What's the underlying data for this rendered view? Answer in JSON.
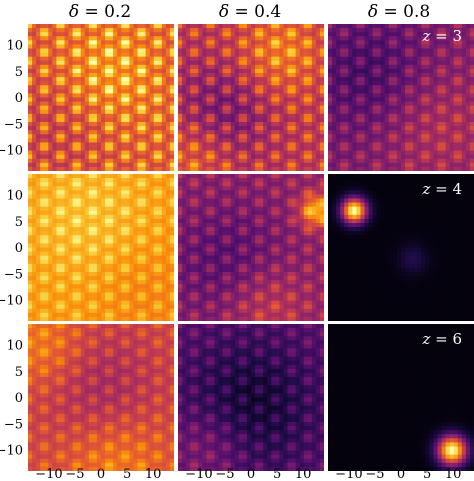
{
  "chart_data": {
    "type": "heatmap",
    "colormap": "inferno",
    "grid": "3x3 panels",
    "columns": [
      {
        "symbol": "δ",
        "value": "0.2"
      },
      {
        "symbol": "δ",
        "value": "0.4"
      },
      {
        "symbol": "δ",
        "value": "0.8"
      }
    ],
    "rows": [
      {
        "symbol": "z",
        "value": "3"
      },
      {
        "symbol": "z",
        "value": "4"
      },
      {
        "symbol": "z",
        "value": "6"
      }
    ],
    "x_ticks": [
      "−10",
      "−5",
      "0",
      "5",
      "10"
    ],
    "y_ticks": [
      "10",
      "5",
      "0",
      "−5",
      "−10"
    ],
    "x_range": [
      -14,
      14
    ],
    "y_range": [
      -14,
      14
    ],
    "panels": [
      {
        "row": 0,
        "col": 0,
        "pattern": "lattice",
        "mean": 0.68,
        "contrast": 0.55,
        "blobs": [
          [
            0.55,
            0.35,
            0.25,
            0.15
          ],
          [
            0.2,
            0.7,
            0.3,
            -0.1
          ]
        ]
      },
      {
        "row": 0,
        "col": 1,
        "pattern": "lattice",
        "mean": 0.55,
        "contrast": 0.45,
        "blobs": [
          [
            0.7,
            0.2,
            0.2,
            0.2
          ],
          [
            0.3,
            0.6,
            0.25,
            -0.2
          ],
          [
            0.1,
            0.9,
            0.2,
            0.15
          ]
        ]
      },
      {
        "row": 0,
        "col": 2,
        "pattern": "lattice",
        "mean": 0.38,
        "contrast": 0.3,
        "blobs": [
          [
            0.3,
            0.35,
            0.3,
            -0.15
          ],
          [
            0.75,
            0.7,
            0.3,
            0.12
          ]
        ]
      },
      {
        "row": 1,
        "col": 0,
        "pattern": "lattice",
        "mean": 0.8,
        "contrast": 0.25,
        "blobs": [
          [
            0.4,
            0.3,
            0.3,
            0.08
          ],
          [
            0.8,
            0.8,
            0.25,
            -0.05
          ]
        ]
      },
      {
        "row": 1,
        "col": 1,
        "pattern": "lattice",
        "mean": 0.42,
        "contrast": 0.3,
        "blobs": [
          [
            0.95,
            0.25,
            0.08,
            0.45
          ],
          [
            0.35,
            0.6,
            0.3,
            -0.15
          ],
          [
            0.6,
            0.9,
            0.2,
            0.15
          ]
        ]
      },
      {
        "row": 1,
        "col": 2,
        "pattern": "peaks",
        "mean": 0.02,
        "contrast": 0.0,
        "blobs": [
          [
            0.18,
            0.25,
            0.06,
            1.0
          ],
          [
            0.58,
            0.58,
            0.07,
            0.12
          ]
        ]
      },
      {
        "row": 2,
        "col": 0,
        "pattern": "lattice",
        "mean": 0.6,
        "contrast": 0.25,
        "blobs": [
          [
            0.5,
            0.45,
            0.3,
            -0.15
          ],
          [
            0.1,
            0.15,
            0.2,
            0.15
          ],
          [
            0.6,
            0.95,
            0.25,
            0.15
          ]
        ]
      },
      {
        "row": 2,
        "col": 1,
        "pattern": "lattice",
        "mean": 0.3,
        "contrast": 0.25,
        "blobs": [
          [
            0.5,
            0.55,
            0.35,
            -0.2
          ],
          [
            0.2,
            0.85,
            0.2,
            0.12
          ]
        ]
      },
      {
        "row": 2,
        "col": 2,
        "pattern": "peaks",
        "mean": 0.02,
        "contrast": 0.0,
        "blobs": [
          [
            0.85,
            0.86,
            0.07,
            1.0
          ]
        ]
      }
    ]
  }
}
